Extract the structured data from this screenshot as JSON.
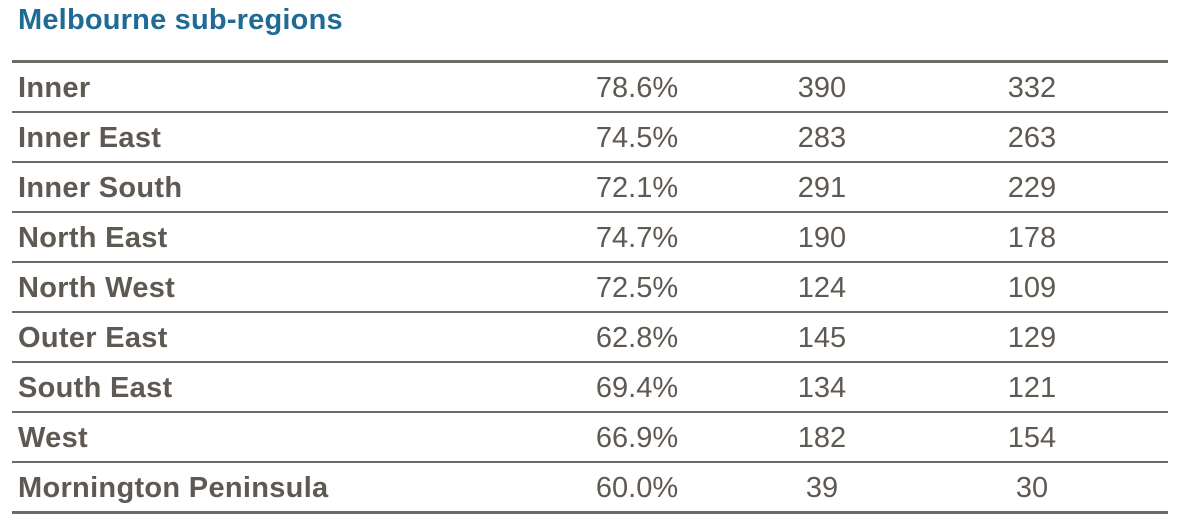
{
  "title": "Melbourne sub-regions",
  "rows": [
    {
      "name": "Inner",
      "pct": "78.6%",
      "v1": "390",
      "v2": "332"
    },
    {
      "name": "Inner East",
      "pct": "74.5%",
      "v1": "283",
      "v2": "263"
    },
    {
      "name": "Inner South",
      "pct": "72.1%",
      "v1": "291",
      "v2": "229"
    },
    {
      "name": "North East",
      "pct": "74.7%",
      "v1": "190",
      "v2": "178"
    },
    {
      "name": "North West",
      "pct": "72.5%",
      "v1": "124",
      "v2": "109"
    },
    {
      "name": "Outer East",
      "pct": "62.8%",
      "v1": "145",
      "v2": "129"
    },
    {
      "name": "South East",
      "pct": "69.4%",
      "v1": "134",
      "v2": "121"
    },
    {
      "name": "West",
      "pct": "66.9%",
      "v1": "182",
      "v2": "154"
    },
    {
      "name": "Mornington Peninsula",
      "pct": "60.0%",
      "v1": "39",
      "v2": "30"
    }
  ],
  "colors": {
    "title": "#1f6b96",
    "text": "#5f5953",
    "rule": "#6e6a66"
  }
}
